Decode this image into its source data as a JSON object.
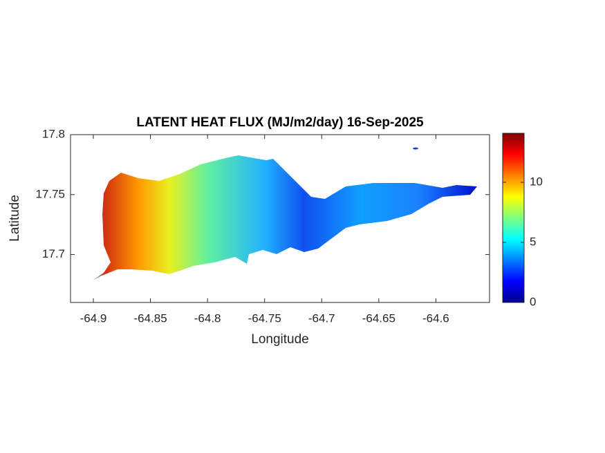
{
  "chart_data": {
    "type": "map",
    "title": "LATENT HEAT FLUX (MJ/m2/day) 16-Sep-2025",
    "x_label": "Longitude",
    "y_label": "Latitude",
    "xlim": [
      -64.92,
      -64.553
    ],
    "xticks": [
      -64.9,
      -64.85,
      -64.8,
      -64.75,
      -64.7,
      -64.65,
      -64.6
    ],
    "ylim": [
      17.66,
      17.8
    ],
    "yticks": [
      17.7,
      17.75,
      17.8
    ],
    "colorbar": {
      "clim": [
        0,
        14.08
      ],
      "ticks": [
        0,
        5,
        10
      ],
      "colormap": "jet"
    }
  }
}
